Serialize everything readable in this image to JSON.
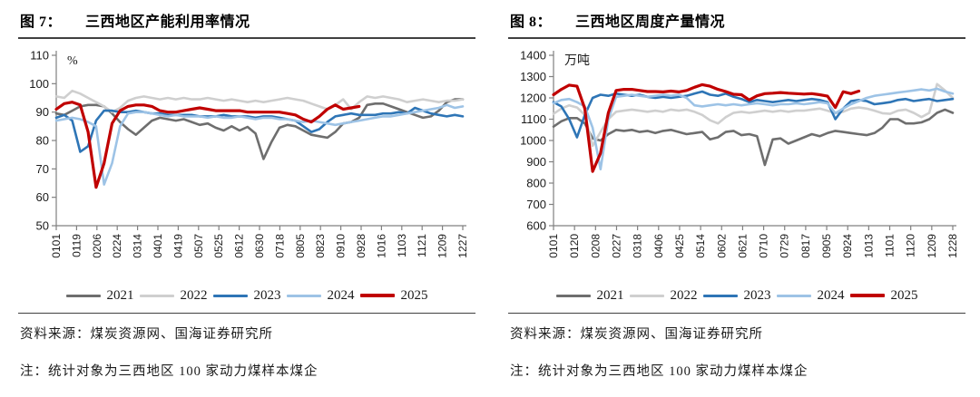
{
  "figures": [
    {
      "caption_prefix": "图 7：",
      "caption": "三西地区产能利用率情况",
      "source": "资料来源：煤炭资源网、国海证券研究所",
      "note": "注：统计对象为三西地区 100 家动力煤样本煤企"
    },
    {
      "caption_prefix": "图 8：",
      "caption": "三西地区周度产量情况",
      "source": "资料来源：煤炭资源网、国海证券研究所",
      "note": "注：统计对象为三西地区 100 家动力煤样本煤企"
    }
  ],
  "chart_data": [
    {
      "type": "line",
      "title": "图 7：三西地区产能利用率情况",
      "unit": "%",
      "ylim": [
        50,
        110
      ],
      "ytick_step": 10,
      "grid": false,
      "legend_position": "bottom",
      "x_tick_labels": [
        "0101",
        "0119",
        "0206",
        "0224",
        "0314",
        "0401",
        "0419",
        "0507",
        "0525",
        "0612",
        "0630",
        "0718",
        "0805",
        "0823",
        "0910",
        "0928",
        "1016",
        "1103",
        "1121",
        "1209",
        "1227"
      ],
      "n_points": 52,
      "series": [
        {
          "name": "2021",
          "color": "#6e6e6e",
          "values": [
            89.5,
            89,
            90.5,
            92,
            92.5,
            92.5,
            92,
            89.5,
            86.5,
            84,
            82,
            84.5,
            87,
            88,
            87.5,
            87,
            87.5,
            86.5,
            85.5,
            86,
            84.5,
            83.5,
            85,
            83.5,
            84.8,
            82.5,
            73.5,
            79.5,
            84.5,
            85.5,
            85,
            83.5,
            82,
            81.5,
            81,
            83,
            86,
            86.5,
            88,
            92.5,
            93,
            93,
            92,
            91,
            90,
            89,
            88,
            88.5,
            90.5,
            93.5,
            94.5,
            94.5
          ]
        },
        {
          "name": "2022",
          "color": "#cfcfcf",
          "values": [
            95.5,
            95,
            97.5,
            96.5,
            95,
            93.5,
            92,
            90,
            91.5,
            94,
            95,
            95.5,
            95,
            94.5,
            95,
            94.5,
            95,
            94.5,
            94.5,
            95,
            94.5,
            94,
            94.5,
            94,
            93.5,
            94,
            93.5,
            94,
            94.5,
            95,
            94.5,
            94,
            93,
            92,
            91,
            92.5,
            94.5,
            91,
            93.5,
            95.5,
            95,
            95.5,
            95,
            94.5,
            93.5,
            94,
            94.5,
            94,
            93.5,
            94,
            94,
            94.5
          ]
        },
        {
          "name": "2023",
          "color": "#2e75b6",
          "values": [
            88,
            89,
            87,
            76,
            78,
            87,
            90.5,
            90.5,
            90,
            90,
            90.5,
            90,
            89.5,
            89.5,
            89,
            89,
            89,
            89,
            88.5,
            88.5,
            88.5,
            89,
            88.5,
            88.5,
            88.5,
            88,
            88.5,
            88.5,
            88,
            87.5,
            87,
            85,
            83,
            84,
            86.5,
            88.5,
            89,
            89.5,
            89,
            89,
            89,
            89.5,
            89.5,
            90,
            89.5,
            91.5,
            90.5,
            89.5,
            89,
            88.5,
            89,
            88.5
          ]
        },
        {
          "name": "2024",
          "color": "#9dc3e6",
          "values": [
            87,
            87.5,
            88,
            87.5,
            86.5,
            85,
            64.5,
            72,
            85,
            89.5,
            90,
            90,
            89.5,
            89,
            88.5,
            89,
            88.5,
            88.5,
            88.5,
            88,
            88.5,
            88,
            88,
            88.5,
            88,
            87.5,
            88,
            88,
            87.5,
            87.5,
            87,
            86.5,
            87,
            86.5,
            86,
            85.5,
            86,
            86.5,
            87,
            87.5,
            88,
            88.5,
            88.5,
            89,
            89.5,
            90,
            90.5,
            91,
            91.5,
            92.5,
            91.5,
            92
          ]
        },
        {
          "name": "2025",
          "color": "#c00000",
          "values": [
            91,
            93,
            93.5,
            92.5,
            83,
            63.5,
            72,
            86,
            90.5,
            92,
            92.5,
            92.5,
            92,
            90.5,
            90,
            90,
            90.5,
            91,
            91.5,
            91,
            90.5,
            90.5,
            90.5,
            90.5,
            90,
            90,
            90,
            90,
            90,
            89.5,
            89,
            87.5,
            86.5,
            88.5,
            91,
            92.5,
            91,
            91.5,
            92
          ]
        }
      ]
    },
    {
      "type": "line",
      "title": "图 8：三西地区周度产量情况",
      "unit": "万吨",
      "ylim": [
        600,
        1400
      ],
      "ytick_step": 100,
      "grid": false,
      "legend_position": "bottom",
      "x_tick_labels": [
        "0101",
        "0120",
        "0208",
        "0227",
        "0318",
        "0406",
        "0425",
        "0514",
        "0602",
        "0621",
        "0710",
        "0729",
        "0817",
        "0905",
        "0924",
        "1013",
        "1101",
        "1120",
        "1209",
        "1228"
      ],
      "n_points": 52,
      "series": [
        {
          "name": "2021",
          "color": "#6e6e6e",
          "values": [
            1065,
            1090,
            1105,
            1105,
            1080,
            1010,
            1000,
            1030,
            1050,
            1045,
            1050,
            1040,
            1045,
            1035,
            1045,
            1050,
            1040,
            1030,
            1035,
            1040,
            1005,
            1015,
            1040,
            1045,
            1025,
            1030,
            1020,
            885,
            1005,
            1010,
            985,
            1000,
            1015,
            1030,
            1020,
            1035,
            1045,
            1040,
            1035,
            1030,
            1025,
            1035,
            1060,
            1100,
            1100,
            1080,
            1080,
            1085,
            1100,
            1130,
            1145,
            1130
          ]
        },
        {
          "name": "2022",
          "color": "#cfcfcf",
          "values": [
            1125,
            1150,
            1165,
            1155,
            1120,
            975,
            1040,
            1100,
            1135,
            1140,
            1145,
            1140,
            1135,
            1140,
            1135,
            1145,
            1140,
            1145,
            1135,
            1120,
            1095,
            1080,
            1110,
            1130,
            1135,
            1130,
            1135,
            1140,
            1135,
            1140,
            1135,
            1140,
            1140,
            1145,
            1150,
            1140,
            1128,
            1135,
            1150,
            1155,
            1150,
            1140,
            1128,
            1125,
            1140,
            1145,
            1130,
            1110,
            1130,
            1265,
            1235,
            1200
          ]
        },
        {
          "name": "2023",
          "color": "#2e75b6",
          "values": [
            1180,
            1160,
            1100,
            1015,
            1120,
            1200,
            1215,
            1210,
            1220,
            1215,
            1210,
            1215,
            1205,
            1200,
            1205,
            1200,
            1205,
            1210,
            1220,
            1230,
            1215,
            1210,
            1220,
            1205,
            1195,
            1180,
            1190,
            1185,
            1180,
            1185,
            1190,
            1185,
            1190,
            1195,
            1190,
            1180,
            1100,
            1150,
            1185,
            1190,
            1185,
            1170,
            1175,
            1180,
            1190,
            1195,
            1185,
            1190,
            1195,
            1185,
            1190,
            1195
          ]
        },
        {
          "name": "2024",
          "color": "#9dc3e6",
          "values": [
            1175,
            1190,
            1195,
            1180,
            1160,
            1060,
            865,
            1100,
            1205,
            1210,
            1215,
            1210,
            1205,
            1210,
            1215,
            1210,
            1215,
            1200,
            1165,
            1160,
            1165,
            1170,
            1165,
            1170,
            1165,
            1170,
            1175,
            1170,
            1165,
            1170,
            1170,
            1175,
            1170,
            1175,
            1180,
            1175,
            1128,
            1150,
            1170,
            1185,
            1200,
            1210,
            1215,
            1220,
            1225,
            1230,
            1235,
            1240,
            1235,
            1243,
            1230,
            1220
          ]
        },
        {
          "name": "2025",
          "color": "#c00000",
          "values": [
            1215,
            1240,
            1260,
            1255,
            1150,
            855,
            940,
            1130,
            1235,
            1240,
            1240,
            1235,
            1230,
            1230,
            1228,
            1232,
            1228,
            1235,
            1250,
            1262,
            1255,
            1240,
            1230,
            1217,
            1215,
            1190,
            1210,
            1220,
            1222,
            1225,
            1222,
            1220,
            1218,
            1220,
            1215,
            1208,
            1155,
            1229,
            1220,
            1232
          ]
        }
      ]
    }
  ]
}
